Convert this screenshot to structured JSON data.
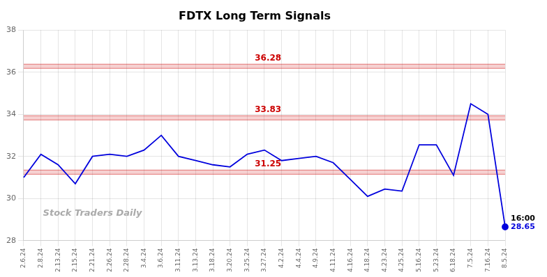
{
  "chart_data": {
    "type": "line",
    "title": "FDTX Long Term Signals",
    "categories": [
      "2.6.24",
      "2.8.24",
      "2.13.24",
      "2.15.24",
      "2.21.24",
      "2.26.24",
      "2.28.24",
      "3.4.24",
      "3.6.24",
      "3.11.24",
      "3.13.24",
      "3.18.24",
      "3.20.24",
      "3.25.24",
      "3.27.24",
      "4.2.24",
      "4.4.24",
      "4.9.24",
      "4.11.24",
      "4.16.24",
      "4.18.24",
      "4.23.24",
      "4.25.24",
      "5.16.24",
      "5.23.24",
      "6.18.24",
      "7.5.24",
      "7.16.24",
      "8.5.24"
    ],
    "values": [
      31.0,
      32.1,
      31.6,
      30.7,
      32.0,
      32.1,
      32.0,
      32.3,
      33.0,
      32.0,
      31.8,
      31.6,
      31.5,
      32.1,
      32.3,
      31.8,
      31.9,
      32.0,
      31.7,
      30.9,
      30.1,
      30.45,
      30.35,
      32.55,
      32.55,
      31.1,
      34.5,
      34.0,
      28.65
    ],
    "color": "#0000dd",
    "ylim": [
      28,
      38
    ],
    "yticks": [
      28,
      30,
      32,
      34,
      36,
      38
    ],
    "grid": true,
    "hlines": [
      {
        "value": 36.28,
        "label": "36.28",
        "color": "#cc0000"
      },
      {
        "value": 33.83,
        "label": "33.83",
        "color": "#cc0000"
      },
      {
        "value": 31.25,
        "label": "31.25",
        "color": "#cc0000"
      }
    ],
    "last_label": "16:00",
    "last_value_label": "28.65",
    "watermark": "Stock Traders Daily"
  }
}
